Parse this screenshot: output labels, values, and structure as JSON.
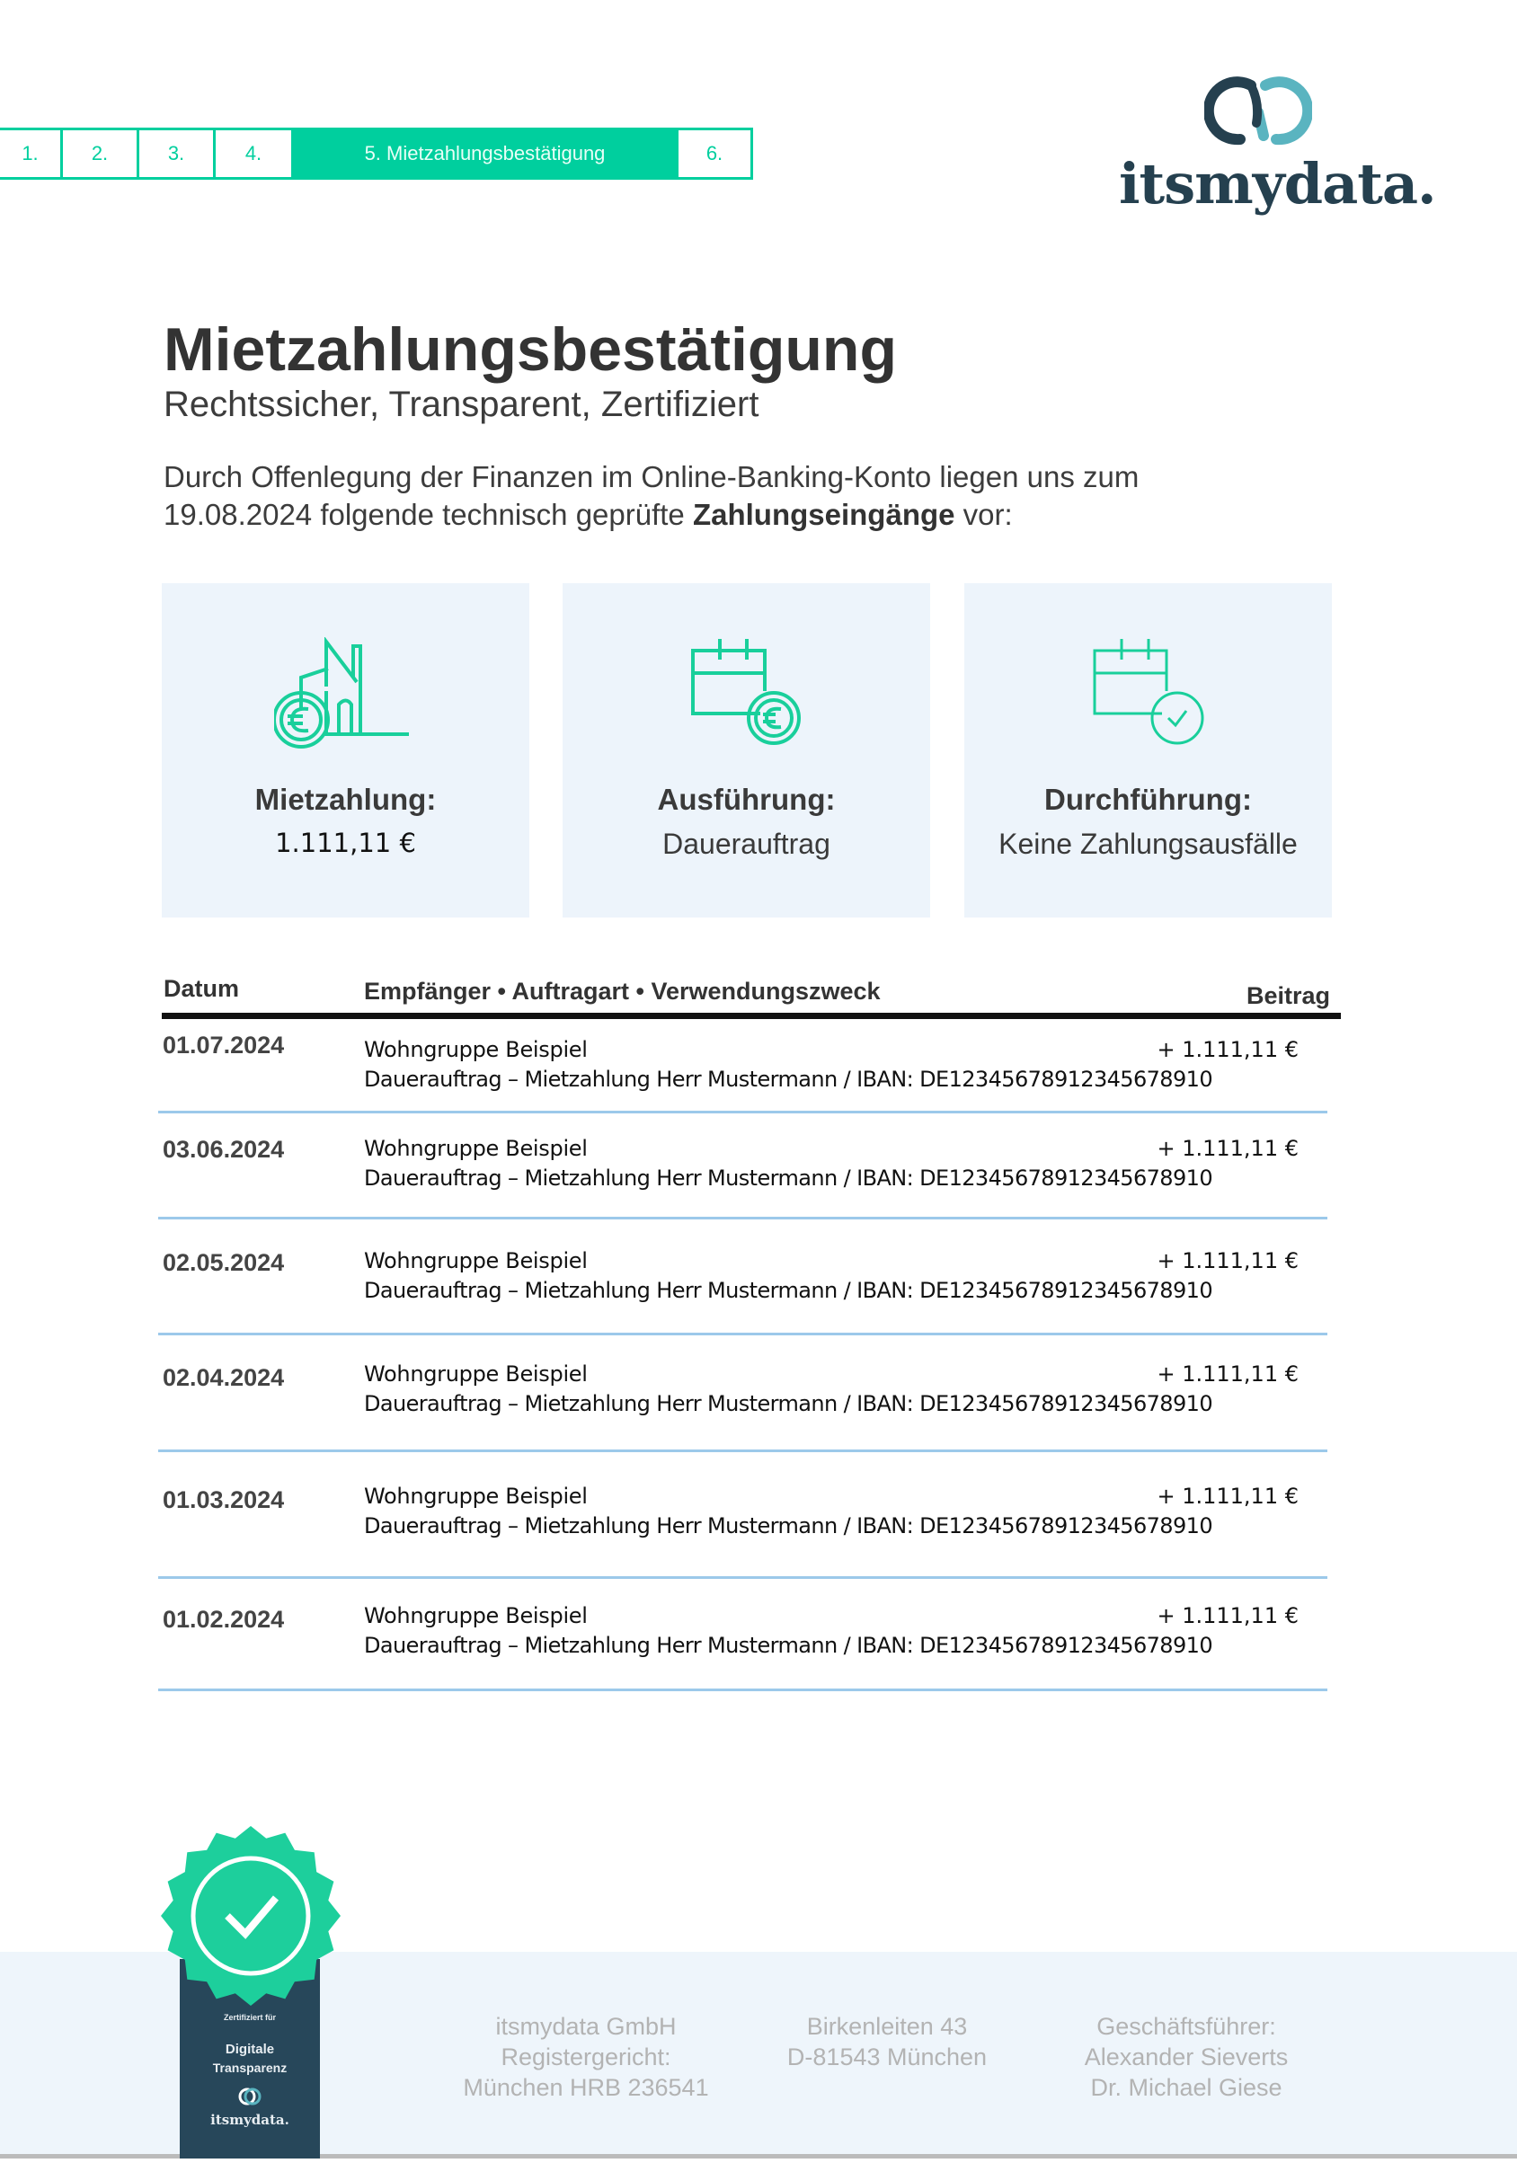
{
  "stepper": {
    "steps": [
      "1.",
      "2.",
      "3.",
      "4.",
      "5. Mietzahlungsbestätigung",
      "6."
    ],
    "active_index": 4
  },
  "logo": {
    "text": "itsmydata."
  },
  "header": {
    "title": "Mietzahlungsbestätigung",
    "subtitle": "Rechtssicher, Transparent, Zertifiziert",
    "intro_part1": "Durch Offenlegung der Finanzen im Online-Banking-Konto liegen uns zum 19.08.2024 folgende technisch geprüfte ",
    "intro_bold": "Zahlungseingänge",
    "intro_part2": " vor:"
  },
  "cards": [
    {
      "icon": "house-euro-icon",
      "label": "Mietzahlung:",
      "value": "1.111,11 €"
    },
    {
      "icon": "calendar-euro-icon",
      "label": "Ausführung:",
      "value": "Dauerauftrag"
    },
    {
      "icon": "calendar-check-icon",
      "label": "Durchführung:",
      "value": "Keine Zahlungsausfälle"
    }
  ],
  "table": {
    "headers": {
      "date": "Datum",
      "details": "Empfänger • Auftragart • Verwendungszweck",
      "amount": "Beitrag"
    },
    "rows": [
      {
        "date": "01.07.2024",
        "recipient": "Wohngruppe Beispiel",
        "purpose": "Dauerauftrag – Mietzahlung Herr Mustermann / IBAN: DE12345678912345678910",
        "amount": "+ 1.111,11 €"
      },
      {
        "date": "03.06.2024",
        "recipient": "Wohngruppe Beispiel",
        "purpose": "Dauerauftrag – Mietzahlung Herr Mustermann / IBAN: DE12345678912345678910",
        "amount": "+ 1.111,11 €"
      },
      {
        "date": "02.05.2024",
        "recipient": "Wohngruppe Beispiel",
        "purpose": "Dauerauftrag – Mietzahlung Herr Mustermann / IBAN: DE12345678912345678910",
        "amount": "+ 1.111,11 €"
      },
      {
        "date": "02.04.2024",
        "recipient": "Wohngruppe Beispiel",
        "purpose": "Dauerauftrag – Mietzahlung Herr Mustermann / IBAN: DE12345678912345678910",
        "amount": "+ 1.111,11 €"
      },
      {
        "date": "01.03.2024",
        "recipient": "Wohngruppe Beispiel",
        "purpose": "Dauerauftrag – Mietzahlung Herr Mustermann / IBAN: DE12345678912345678910",
        "amount": "+ 1.111,11 €"
      },
      {
        "date": "01.02.2024",
        "recipient": "Wohngruppe Beispiel",
        "purpose": "Dauerauftrag – Mietzahlung Herr Mustermann / IBAN: DE12345678912345678910",
        "amount": "+ 1.111,11 €"
      }
    ]
  },
  "badge": {
    "small": "Zertifiziert für",
    "line1": "Digitale",
    "line2": "Transparenz",
    "brand": "itsmydata."
  },
  "footer": {
    "company": [
      "itsmydata GmbH",
      "Registergericht:",
      "München HRB 236541"
    ],
    "address": [
      "Birkenleiten 43",
      "D-81543 München"
    ],
    "management": [
      "Geschäftsführer:",
      "Alexander Sieverts",
      "Dr. Michael Giese"
    ]
  },
  "colors": {
    "accent": "#00cf9e",
    "brand_dark": "#25404f",
    "brand_light": "#5ab4c0",
    "card_bg": "#edf4fb",
    "row_line": "#9cc9ea"
  }
}
